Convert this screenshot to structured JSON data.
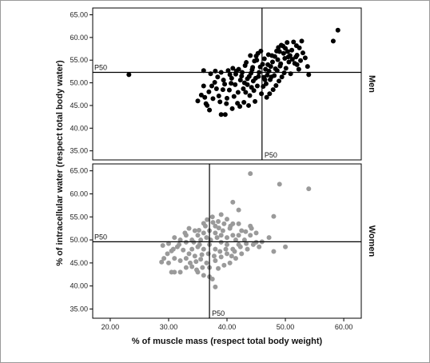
{
  "chart_data": {
    "type": "scatter",
    "xlabel": "% of muscle mass (respect total body weight)",
    "ylabel": "% of intracellular water (respect total body water)",
    "xlim": [
      17,
      63
    ],
    "x_ticks": [
      "20.00",
      "30.00",
      "40.00",
      "50.00",
      "60.00"
    ],
    "y_ticks": [
      "35.00",
      "40.00",
      "45.00",
      "50.00",
      "55.00",
      "60.00",
      "65.00"
    ],
    "panels": [
      {
        "label": "Men",
        "color": "#000000",
        "ylim": [
          33,
          66.5
        ],
        "median_label_x": "P50",
        "median_label_y": "P50",
        "p50_x": 46.0,
        "p50_y": 52.3,
        "points": [
          [
            23.2,
            51.8
          ],
          [
            59.0,
            61.6
          ],
          [
            58.2,
            59.2
          ],
          [
            54.0,
            51.8
          ],
          [
            53.8,
            53.6
          ],
          [
            52.0,
            54.0
          ],
          [
            36.0,
            52.7
          ],
          [
            37.2,
            52.0
          ],
          [
            38.0,
            52.6
          ],
          [
            36.0,
            49.3
          ],
          [
            35.0,
            46.0
          ],
          [
            36.4,
            45.4
          ],
          [
            37.0,
            44.0
          ],
          [
            39.0,
            43.0
          ],
          [
            39.7,
            43.0
          ],
          [
            39.9,
            45.4
          ],
          [
            40.0,
            46.6
          ],
          [
            40.4,
            48.4
          ],
          [
            39.4,
            50.6
          ],
          [
            40.8,
            51.0
          ],
          [
            41.4,
            49.6
          ],
          [
            41.9,
            47.9
          ],
          [
            42.2,
            44.8
          ],
          [
            42.9,
            45.7
          ],
          [
            43.2,
            47.9
          ],
          [
            43.5,
            49.6
          ],
          [
            43.8,
            51.4
          ],
          [
            44.1,
            52.1
          ],
          [
            44.4,
            53.4
          ],
          [
            44.7,
            54.8
          ],
          [
            45.0,
            55.9
          ],
          [
            45.3,
            56.5
          ],
          [
            45.8,
            57.0
          ],
          [
            45.9,
            47.6
          ],
          [
            46.2,
            49.2
          ],
          [
            46.5,
            50.7
          ],
          [
            46.9,
            51.7
          ],
          [
            47.2,
            52.6
          ],
          [
            47.5,
            53.6
          ],
          [
            47.8,
            54.6
          ],
          [
            48.2,
            55.8
          ],
          [
            48.5,
            57.0
          ],
          [
            48.8,
            57.8
          ],
          [
            49.3,
            58.3
          ],
          [
            49.6,
            58.1
          ],
          [
            50.0,
            57.6
          ],
          [
            50.4,
            56.9
          ],
          [
            50.8,
            56.0
          ],
          [
            51.2,
            55.2
          ],
          [
            51.6,
            54.3
          ],
          [
            52.0,
            56.1
          ],
          [
            52.4,
            57.7
          ],
          [
            52.8,
            59.2
          ],
          [
            50.1,
            53.2
          ],
          [
            49.8,
            52.2
          ],
          [
            49.4,
            51.3
          ],
          [
            48.9,
            50.4
          ],
          [
            48.4,
            49.4
          ],
          [
            47.9,
            48.5
          ],
          [
            47.3,
            47.6
          ],
          [
            46.8,
            46.8
          ],
          [
            44.8,
            45.9
          ],
          [
            44.2,
            49.0
          ],
          [
            43.5,
            50.9
          ],
          [
            42.5,
            51.5
          ],
          [
            41.6,
            52.6
          ],
          [
            41.0,
            53.2
          ],
          [
            40.2,
            52.7
          ],
          [
            39.0,
            52.3
          ],
          [
            38.4,
            51.3
          ],
          [
            37.9,
            50.1
          ],
          [
            37.4,
            49.3
          ],
          [
            36.9,
            48.0
          ],
          [
            41.2,
            47.0
          ],
          [
            42.8,
            48.7
          ],
          [
            43.9,
            47.2
          ],
          [
            44.5,
            50.4
          ],
          [
            45.4,
            51.4
          ],
          [
            45.7,
            53.5
          ],
          [
            46.4,
            55.3
          ],
          [
            47.1,
            56.2
          ],
          [
            47.7,
            56.0
          ],
          [
            48.7,
            55.1
          ],
          [
            49.2,
            54.2
          ],
          [
            49.9,
            55.4
          ],
          [
            50.6,
            54.6
          ],
          [
            51.1,
            57.2
          ],
          [
            51.9,
            58.2
          ],
          [
            53.0,
            56.6
          ],
          [
            53.4,
            55.5
          ],
          [
            52.6,
            54.9
          ],
          [
            46.1,
            54.1
          ],
          [
            45.5,
            52.3
          ],
          [
            44.9,
            51.0
          ],
          [
            44.3,
            52.9
          ],
          [
            43.1,
            53.8
          ],
          [
            42.3,
            50.6
          ],
          [
            40.7,
            49.9
          ],
          [
            39.3,
            48.5
          ],
          [
            38.6,
            47.1
          ],
          [
            41.8,
            45.5
          ],
          [
            43.7,
            45.0
          ],
          [
            44.6,
            48.3
          ],
          [
            45.2,
            49.3
          ],
          [
            46.7,
            49.8
          ],
          [
            47.4,
            50.7
          ],
          [
            48.1,
            51.6
          ],
          [
            48.6,
            52.7
          ],
          [
            49.1,
            53.7
          ],
          [
            49.7,
            56.5
          ],
          [
            50.3,
            58.9
          ],
          [
            51.4,
            59.0
          ],
          [
            50.9,
            52.0
          ],
          [
            47.0,
            54.0
          ],
          [
            46.6,
            53.0
          ],
          [
            45.1,
            55.0
          ],
          [
            44.0,
            56.0
          ],
          [
            43.3,
            54.5
          ],
          [
            42.0,
            53.0
          ],
          [
            40.5,
            51.8
          ],
          [
            39.6,
            49.7
          ],
          [
            38.2,
            48.7
          ],
          [
            37.6,
            46.5
          ],
          [
            36.6,
            45.0
          ],
          [
            35.6,
            47.3
          ],
          [
            38.8,
            45.8
          ],
          [
            40.9,
            44.3
          ],
          [
            41.5,
            51.9
          ],
          [
            42.6,
            52.3
          ],
          [
            43.0,
            50.0
          ],
          [
            46.3,
            51.2
          ],
          [
            47.6,
            51.3
          ],
          [
            48.3,
            53.1
          ],
          [
            49.0,
            56.9
          ],
          [
            50.5,
            55.7
          ],
          [
            51.8,
            55.7
          ],
          [
            52.3,
            53.0
          ],
          [
            36.2,
            46.8
          ]
        ]
      },
      {
        "label": "Women",
        "color": "#9a9a9a",
        "ylim": [
          33,
          66.5
        ],
        "median_label_x": "P50",
        "median_label_y": "P50",
        "p50_x": 37.0,
        "p50_y": 49.6,
        "points": [
          [
            44.0,
            64.4
          ],
          [
            49.0,
            62.1
          ],
          [
            54.0,
            61.1
          ],
          [
            41.0,
            58.2
          ],
          [
            42.0,
            56.5
          ],
          [
            48.0,
            55.1
          ],
          [
            48.0,
            47.5
          ],
          [
            50.0,
            48.5
          ],
          [
            46.0,
            49.6
          ],
          [
            45.0,
            51.5
          ],
          [
            44.0,
            53.0
          ],
          [
            42.0,
            53.5
          ],
          [
            38.0,
            53.0
          ],
          [
            36.0,
            53.6
          ],
          [
            35.2,
            52.1
          ],
          [
            33.0,
            51.0
          ],
          [
            31.0,
            50.5
          ],
          [
            30.0,
            49.2
          ],
          [
            29.0,
            48.8
          ],
          [
            30.5,
            47.6
          ],
          [
            29.2,
            46.0
          ],
          [
            28.8,
            45.2
          ],
          [
            30.0,
            45.0
          ],
          [
            30.5,
            43.0
          ],
          [
            31.0,
            43.0
          ],
          [
            32.0,
            43.0
          ],
          [
            33.0,
            44.0
          ],
          [
            34.0,
            44.2
          ],
          [
            35.0,
            43.0
          ],
          [
            36.0,
            42.3
          ],
          [
            37.0,
            42.0
          ],
          [
            37.5,
            41.5
          ],
          [
            38.0,
            39.8
          ],
          [
            37.0,
            44.0
          ],
          [
            38.0,
            45.5
          ],
          [
            39.0,
            46.3
          ],
          [
            40.0,
            47.0
          ],
          [
            41.0,
            48.0
          ],
          [
            42.0,
            49.0
          ],
          [
            43.0,
            50.0
          ],
          [
            44.0,
            51.0
          ],
          [
            45.0,
            49.5
          ],
          [
            45.5,
            48.5
          ],
          [
            42.5,
            47.0
          ],
          [
            41.5,
            46.0
          ],
          [
            40.5,
            45.0
          ],
          [
            39.5,
            44.5
          ],
          [
            38.5,
            43.8
          ],
          [
            36.5,
            45.0
          ],
          [
            35.5,
            45.8
          ],
          [
            34.5,
            46.5
          ],
          [
            33.5,
            47.0
          ],
          [
            32.5,
            47.8
          ],
          [
            31.5,
            48.5
          ],
          [
            32.0,
            50.0
          ],
          [
            33.0,
            49.5
          ],
          [
            34.0,
            50.0
          ],
          [
            35.0,
            51.0
          ],
          [
            36.0,
            51.5
          ],
          [
            37.0,
            52.0
          ],
          [
            38.0,
            51.5
          ],
          [
            39.0,
            51.0
          ],
          [
            40.0,
            50.5
          ],
          [
            41.0,
            51.0
          ],
          [
            40.5,
            52.5
          ],
          [
            39.5,
            53.5
          ],
          [
            38.5,
            54.0
          ],
          [
            37.5,
            55.0
          ],
          [
            39.0,
            55.5
          ],
          [
            40.0,
            54.5
          ],
          [
            41.0,
            53.5
          ],
          [
            42.5,
            52.0
          ],
          [
            43.5,
            48.0
          ],
          [
            44.5,
            49.0
          ],
          [
            36.0,
            48.0
          ],
          [
            35.0,
            48.5
          ],
          [
            34.0,
            48.0
          ],
          [
            33.0,
            46.0
          ],
          [
            32.0,
            45.5
          ],
          [
            31.0,
            46.0
          ],
          [
            37.0,
            49.0
          ],
          [
            38.0,
            48.0
          ],
          [
            39.0,
            49.5
          ],
          [
            40.0,
            49.0
          ],
          [
            41.5,
            50.0
          ],
          [
            42.0,
            51.0
          ],
          [
            36.5,
            50.5
          ],
          [
            35.5,
            50.0
          ],
          [
            34.5,
            52.0
          ],
          [
            33.5,
            52.5
          ],
          [
            37.8,
            46.5
          ],
          [
            36.8,
            47.0
          ],
          [
            35.8,
            44.0
          ],
          [
            34.8,
            43.5
          ],
          [
            38.8,
            47.5
          ],
          [
            39.8,
            48.0
          ],
          [
            40.8,
            46.5
          ],
          [
            43.2,
            51.8
          ],
          [
            44.2,
            52.5
          ],
          [
            47.2,
            50.5
          ],
          [
            37.2,
            50.0
          ],
          [
            38.3,
            50.5
          ],
          [
            39.3,
            52.0
          ],
          [
            36.3,
            53.0
          ],
          [
            35.3,
            49.0
          ],
          [
            34.3,
            49.5
          ],
          [
            32.8,
            51.5
          ],
          [
            31.8,
            49.0
          ],
          [
            30.8,
            48.0
          ],
          [
            29.8,
            47.0
          ],
          [
            41.3,
            47.5
          ],
          [
            42.3,
            48.5
          ],
          [
            43.3,
            49.2
          ],
          [
            38.6,
            52.6
          ],
          [
            37.6,
            53.8
          ],
          [
            36.6,
            54.4
          ],
          [
            40.6,
            53.0
          ],
          [
            33.7,
            45.0
          ],
          [
            34.7,
            45.3
          ],
          [
            35.7,
            46.8
          ]
        ]
      }
    ]
  }
}
